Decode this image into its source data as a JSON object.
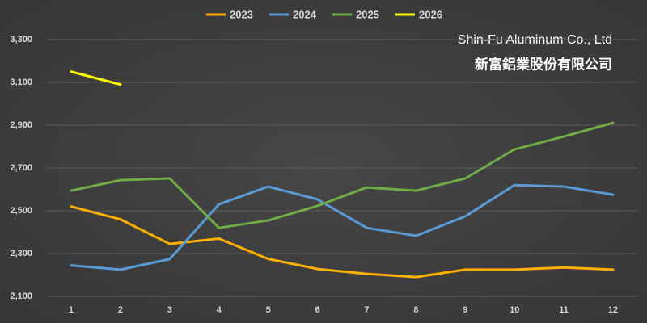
{
  "chart_data": {
    "type": "line",
    "categories": [
      "1",
      "2",
      "3",
      "4",
      "5",
      "6",
      "7",
      "8",
      "9",
      "10",
      "11",
      "12"
    ],
    "series": [
      {
        "name": "2023",
        "color": "#ffb000",
        "values": [
          2520,
          2460,
          2345,
          2370,
          2275,
          2228,
          2205,
          2190,
          2225,
          2225,
          2235,
          2225
        ]
      },
      {
        "name": "2024",
        "color": "#5b9bd5",
        "values": [
          2245,
          2225,
          2274,
          2530,
          2613,
          2553,
          2420,
          2383,
          2474,
          2620,
          2613,
          2575
        ]
      },
      {
        "name": "2025",
        "color": "#70ad47",
        "values": [
          2594,
          2643,
          2651,
          2420,
          2455,
          2523,
          2609,
          2594,
          2651,
          2787,
          2847,
          2911
        ]
      },
      {
        "name": "2026",
        "color": "#ffff00",
        "values": [
          3150,
          3090,
          null,
          null,
          null,
          null,
          null,
          null,
          null,
          null,
          null,
          null
        ]
      }
    ],
    "ylim": [
      2100,
      3300
    ],
    "yticks": [
      {
        "value": 2100,
        "label": "2,100"
      },
      {
        "value": 2300,
        "label": "2,300"
      },
      {
        "value": 2500,
        "label": "2,500"
      },
      {
        "value": 2700,
        "label": "2,700"
      },
      {
        "value": 2900,
        "label": "2,900"
      },
      {
        "value": 3100,
        "label": "3,100"
      },
      {
        "value": 3300,
        "label": "3,300"
      }
    ],
    "grid": true,
    "legend": "top",
    "annotations": [
      "Shin-Fu Aluminum Co., Ltd",
      "新富鋁業股份有限公司"
    ]
  }
}
